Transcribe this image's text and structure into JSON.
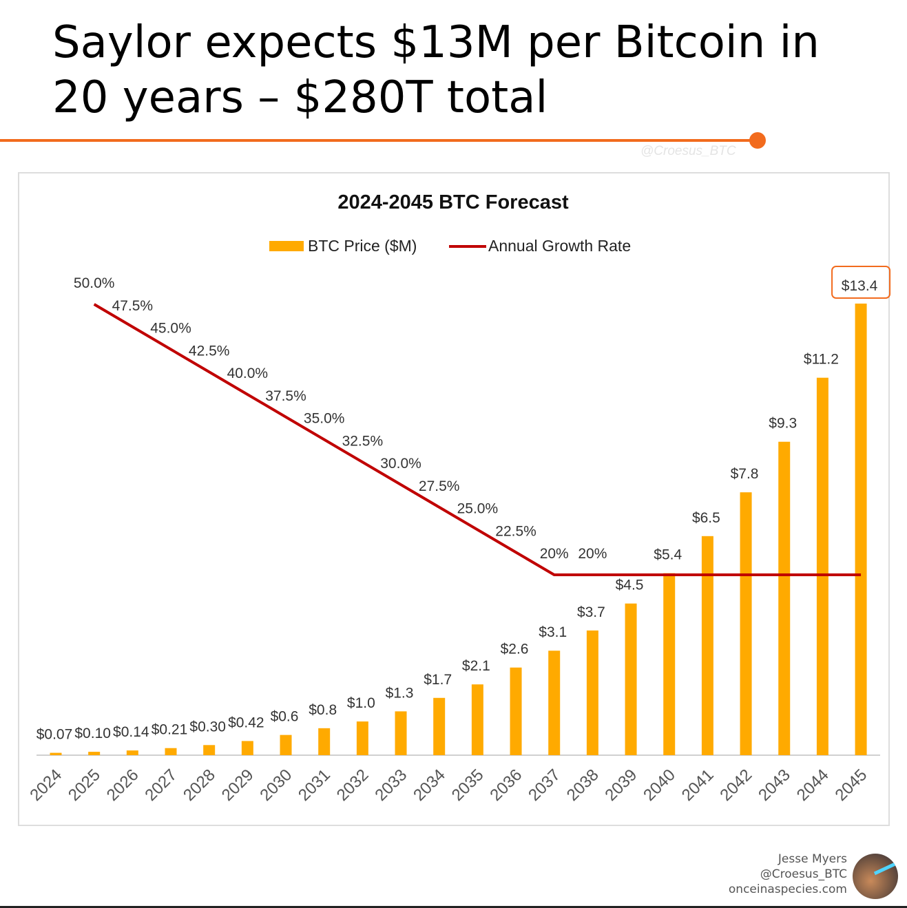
{
  "title": "Saylor expects $13M per Bitcoin in 20 years – $280T total",
  "watermark": "@Croesus_BTC",
  "credits": {
    "name": "Jesse Myers",
    "handle": "@Croesus_BTC",
    "site": "onceinaspecies.com"
  },
  "chart_data": {
    "type": "bar+line",
    "title": "2024-2045 BTC Forecast",
    "legend": [
      "BTC Price ($M)",
      "Annual Growth Rate"
    ],
    "legend_position": "top",
    "colors": {
      "bar": "#ffaa00",
      "line": "#c00000",
      "highlight": "#f26b1d"
    },
    "categories": [
      "2024",
      "2025",
      "2026",
      "2027",
      "2028",
      "2029",
      "2030",
      "2031",
      "2032",
      "2033",
      "2034",
      "2035",
      "2036",
      "2037",
      "2038",
      "2039",
      "2040",
      "2041",
      "2042",
      "2043",
      "2044",
      "2045"
    ],
    "series": [
      {
        "name": "BTC Price ($M)",
        "type": "bar",
        "values": [
          0.07,
          0.1,
          0.14,
          0.21,
          0.3,
          0.42,
          0.6,
          0.8,
          1.0,
          1.3,
          1.7,
          2.1,
          2.6,
          3.1,
          3.7,
          4.5,
          5.4,
          6.5,
          7.8,
          9.3,
          11.2,
          13.4
        ],
        "labels": [
          "$0.07",
          "$0.10",
          "$0.14",
          "$0.21",
          "$0.30",
          "$0.42",
          "$0.6",
          "$0.8",
          "$1.0",
          "$1.3",
          "$1.7",
          "$2.1",
          "$2.6",
          "$3.1",
          "$3.7",
          "$4.5",
          "$5.4",
          "$6.5",
          "$7.8",
          "$9.3",
          "$11.2",
          "$13.4"
        ]
      },
      {
        "name": "Annual Growth Rate",
        "type": "line",
        "values": [
          null,
          50.0,
          47.5,
          45.0,
          42.5,
          40.0,
          37.5,
          35.0,
          32.5,
          30.0,
          27.5,
          25.0,
          22.5,
          20,
          20,
          20,
          20,
          20,
          20,
          20,
          20,
          20
        ],
        "labels": [
          "",
          "50.0%",
          "47.5%",
          "45.0%",
          "42.5%",
          "40.0%",
          "37.5%",
          "35.0%",
          "32.5%",
          "30.0%",
          "27.5%",
          "25.0%",
          "22.5%",
          "20%",
          "20%",
          "",
          "",
          "",
          "",
          "",
          "",
          ""
        ]
      }
    ],
    "highlighted_label": "$13.4",
    "grid": false
  }
}
